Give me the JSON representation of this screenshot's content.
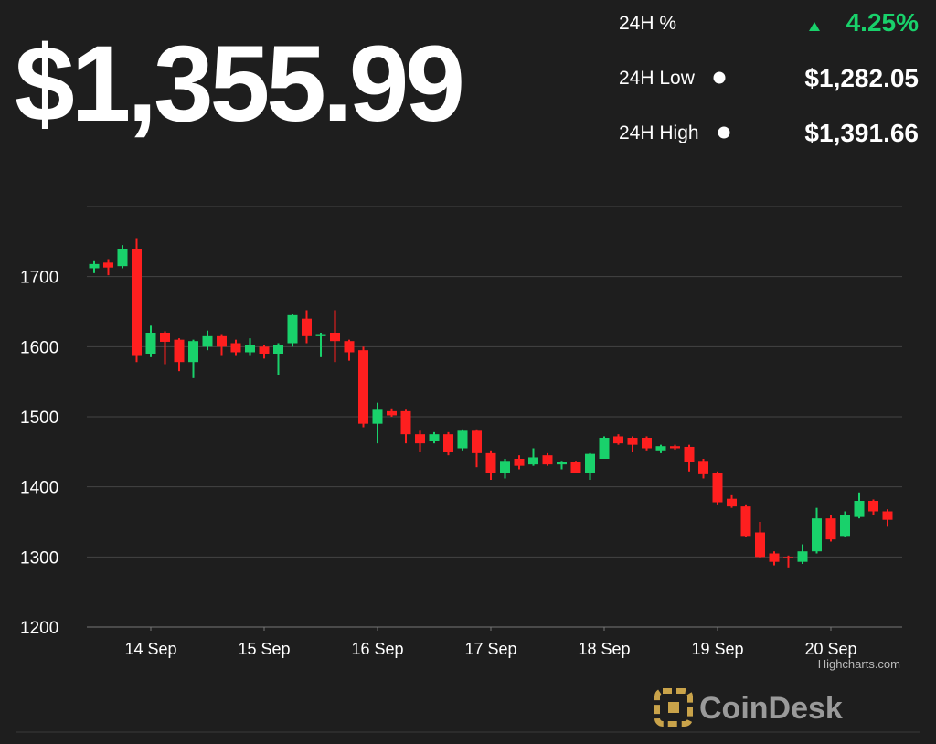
{
  "header": {
    "price": "$1,355.99",
    "change_label": "24H %",
    "change": "4.25%",
    "low_label": "24H Low",
    "low": "$1,282.05",
    "high_label": "24H High",
    "high": "$1,391.66"
  },
  "chart_data": {
    "type": "candlestick",
    "series": [
      {
        "up_color": "#19d16b",
        "down_color": "#ff1f1f",
        "open": [
          1712,
          1720,
          1715,
          1740,
          1590,
          1620,
          1610,
          1578,
          1600,
          1615,
          1605,
          1592,
          1600,
          1590,
          1605,
          1640,
          1615,
          1620,
          1608,
          1595,
          1490,
          1508,
          1508,
          1475,
          1465,
          1475,
          1455,
          1480,
          1448,
          1420,
          1440,
          1432,
          1445,
          1432,
          1435,
          1420,
          1440,
          1472,
          1470,
          1470,
          1452,
          1458,
          1457,
          1437,
          1420,
          1383,
          1372,
          1335,
          1305,
          1300,
          1293,
          1308,
          1355,
          1330,
          1357,
          1380,
          1365
        ],
        "high": [
          1722,
          1725,
          1745,
          1755,
          1630,
          1622,
          1612,
          1610,
          1623,
          1618,
          1610,
          1612,
          1602,
          1605,
          1647,
          1652,
          1620,
          1652,
          1610,
          1600,
          1520,
          1512,
          1510,
          1480,
          1478,
          1478,
          1482,
          1482,
          1452,
          1440,
          1445,
          1455,
          1448,
          1437,
          1437,
          1448,
          1472,
          1475,
          1472,
          1472,
          1460,
          1460,
          1460,
          1440,
          1422,
          1388,
          1375,
          1350,
          1308,
          1302,
          1318,
          1370,
          1360,
          1365,
          1392,
          1382,
          1368
        ],
        "low": [
          1705,
          1702,
          1712,
          1578,
          1585,
          1575,
          1565,
          1555,
          1595,
          1588,
          1588,
          1588,
          1583,
          1560,
          1600,
          1605,
          1585,
          1578,
          1580,
          1485,
          1462,
          1500,
          1462,
          1450,
          1462,
          1445,
          1452,
          1428,
          1410,
          1412,
          1425,
          1430,
          1430,
          1425,
          1420,
          1410,
          1440,
          1460,
          1450,
          1452,
          1448,
          1453,
          1422,
          1412,
          1375,
          1370,
          1328,
          1298,
          1288,
          1285,
          1290,
          1305,
          1322,
          1328,
          1355,
          1360,
          1343
        ],
        "close": [
          1718,
          1713,
          1740,
          1588,
          1620,
          1607,
          1578,
          1608,
          1615,
          1600,
          1592,
          1602,
          1590,
          1603,
          1645,
          1615,
          1618,
          1608,
          1592,
          1490,
          1510,
          1502,
          1475,
          1462,
          1475,
          1450,
          1480,
          1448,
          1420,
          1437,
          1430,
          1442,
          1432,
          1435,
          1420,
          1447,
          1470,
          1462,
          1460,
          1455,
          1458,
          1455,
          1435,
          1418,
          1378,
          1372,
          1330,
          1300,
          1293,
          1298,
          1308,
          1355,
          1325,
          1360,
          1380,
          1365,
          1353
        ]
      }
    ],
    "xlim": [
      -0.5,
      56.5
    ],
    "xticks": [
      {
        "value": 4,
        "label": "14 Sep"
      },
      {
        "value": 12,
        "label": "15 Sep"
      },
      {
        "value": 20,
        "label": "16 Sep"
      },
      {
        "value": 28,
        "label": "17 Sep"
      },
      {
        "value": 36,
        "label": "18 Sep"
      },
      {
        "value": 44,
        "label": "19 Sep"
      },
      {
        "value": 52,
        "label": "20 Sep"
      }
    ],
    "ylim": [
      1200,
      1800
    ],
    "yticks": [
      1200,
      1300,
      1400,
      1500,
      1600,
      1700
    ],
    "grid": true,
    "credits": "Highcharts.com"
  },
  "brand": "CoinDesk"
}
